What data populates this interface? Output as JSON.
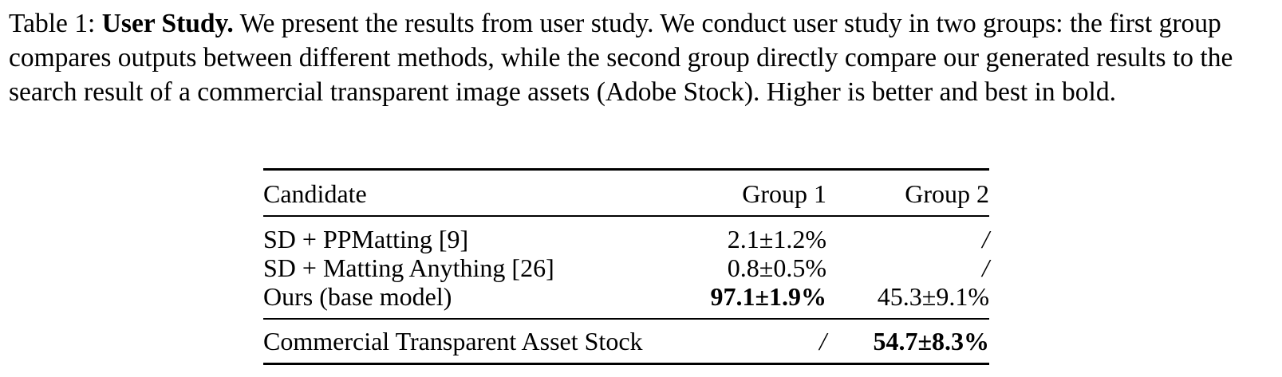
{
  "caption": {
    "label": "Table 1:",
    "title": "User Study.",
    "text": "We present the results from user study. We conduct user study in two groups: the first group compares outputs between different methods, while the second group directly compare our generated results to the search result of a commercial transparent image assets (Adobe Stock). Higher is better and best in bold."
  },
  "table": {
    "headers": [
      "Candidate",
      "Group 1",
      "Group 2"
    ],
    "rows": [
      {
        "candidate": "SD + PPMatting [9]",
        "group1": "2.1±1.2%",
        "group2": "/"
      },
      {
        "candidate": "SD + Matting Anything [26]",
        "group1": "0.8±0.5%",
        "group2": "/"
      },
      {
        "candidate": "Ours (base model)",
        "group1": "97.1±1.9%",
        "group2": "45.3±9.1%"
      }
    ],
    "footer": {
      "candidate": "Commercial Transparent Asset Stock",
      "group1": "/",
      "group2": "54.7±8.3%"
    }
  }
}
